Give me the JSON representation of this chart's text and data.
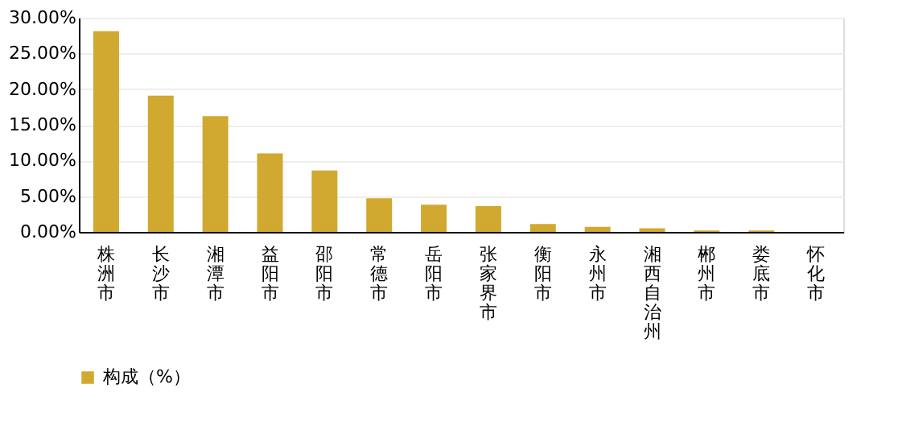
{
  "chart_data": {
    "type": "bar",
    "categories": [
      "株洲市",
      "长沙市",
      "湘潭市",
      "益阳市",
      "邵阳市",
      "常德市",
      "岳阳市",
      "张家界市",
      "衡阳市",
      "永州市",
      "湘西自治州",
      "郴州市",
      "娄底市",
      "怀化市"
    ],
    "series": [
      {
        "name": "构成（%）",
        "color": "#d1a930",
        "values": [
          28.1,
          19.1,
          16.2,
          11.0,
          8.6,
          4.7,
          3.8,
          3.6,
          1.1,
          0.7,
          0.5,
          0.2,
          0.2,
          null
        ]
      }
    ],
    "ylim": [
      0,
      30
    ],
    "yticks": [
      {
        "value": 0,
        "label": "0.00%"
      },
      {
        "value": 5,
        "label": "5.00%"
      },
      {
        "value": 10,
        "label": "10.00%"
      },
      {
        "value": 15,
        "label": "15.00%"
      },
      {
        "value": 20,
        "label": "20.00%"
      },
      {
        "value": 25,
        "label": "25.00%"
      },
      {
        "value": 30,
        "label": "30.00%"
      }
    ],
    "grid": "y",
    "legend": "bottom"
  }
}
